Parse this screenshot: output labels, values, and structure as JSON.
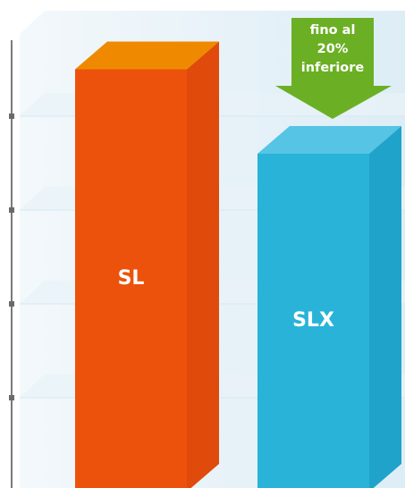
{
  "chart_data": {
    "type": "bar3d",
    "categories": [
      "SL",
      "SLX"
    ],
    "values": [
      4.5,
      3.6
    ],
    "colors": [
      "#ec520c",
      "#29b3d9"
    ],
    "top_colors": [
      "#ef8a00",
      "#56c4e4"
    ],
    "side_colors": [
      "#e04a0a",
      "#1fa3cb"
    ],
    "ylim": [
      0,
      5
    ],
    "yticks": [
      1,
      2,
      3,
      4
    ],
    "annotation": [
      "fino al",
      "20%",
      "inferiore"
    ],
    "annotation_color": "#6bb024"
  }
}
